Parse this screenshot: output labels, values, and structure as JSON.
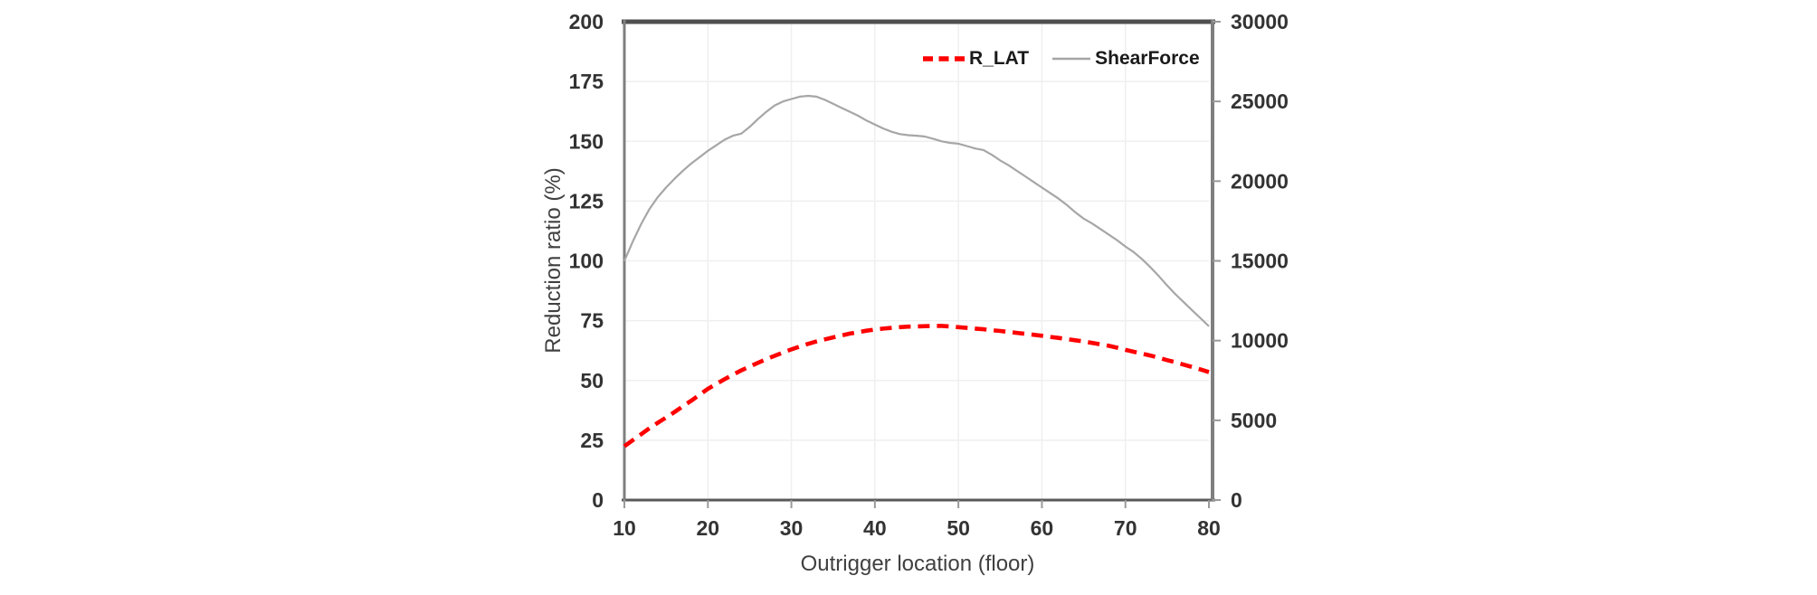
{
  "colors": {
    "rlat_red": "#FF0000",
    "shearforce_gray": "#A6A6A6",
    "plot_border_dark": "#4f4f4f",
    "axis_line": "#7f7f7f",
    "gridline": "#efefef",
    "tick_text": "#333333",
    "title_text": "#404040",
    "background": "#ffffff"
  },
  "chart_data": {
    "type": "line",
    "title": "",
    "xlabel": "Outrigger location (floor)",
    "ylabel": "Reduction ratio (%)",
    "ylabel_right": "",
    "grid": true,
    "legend_position": "top-right-inside",
    "x_axis": {
      "min": 10,
      "max": 80,
      "ticks": [
        10,
        20,
        30,
        40,
        50,
        60,
        70,
        80
      ]
    },
    "left_axis": {
      "min": 0,
      "max": 200,
      "ticks": [
        0,
        25,
        50,
        75,
        100,
        125,
        150,
        175,
        200
      ]
    },
    "right_axis": {
      "min": 0,
      "max": 30000,
      "ticks": [
        0,
        5000,
        10000,
        15000,
        20000,
        25000,
        30000
      ]
    },
    "series": [
      {
        "name": "R_LAT",
        "axis": "left",
        "color": "#FF0000",
        "style": "dashed",
        "width": 4.6,
        "points": [
          [
            10,
            22.5
          ],
          [
            11,
            25
          ],
          [
            12,
            27.5
          ],
          [
            13,
            30
          ],
          [
            14,
            32.3
          ],
          [
            15,
            34.5
          ],
          [
            16,
            36.8
          ],
          [
            17,
            39.2
          ],
          [
            18,
            41.5
          ],
          [
            19,
            44
          ],
          [
            20,
            46.5
          ],
          [
            21,
            48.5
          ],
          [
            22,
            50.5
          ],
          [
            23,
            52.4
          ],
          [
            24,
            54.2
          ],
          [
            25,
            55.8
          ],
          [
            26,
            57.4
          ],
          [
            27,
            58.9
          ],
          [
            28,
            60.3
          ],
          [
            29,
            61.7
          ],
          [
            30,
            63
          ],
          [
            31,
            64.2
          ],
          [
            32,
            65.3
          ],
          [
            33,
            66.3
          ],
          [
            34,
            67.2
          ],
          [
            35,
            68
          ],
          [
            36,
            68.8
          ],
          [
            37,
            69.6
          ],
          [
            38,
            70.2
          ],
          [
            39,
            70.8
          ],
          [
            40,
            71.3
          ],
          [
            41,
            71.7
          ],
          [
            42,
            72
          ],
          [
            43,
            72.3
          ],
          [
            44,
            72.5
          ],
          [
            45,
            72.6
          ],
          [
            46,
            72.7
          ],
          [
            47,
            72.8
          ],
          [
            48,
            72.8
          ],
          [
            49,
            72.6
          ],
          [
            50,
            72.3
          ],
          [
            51,
            72
          ],
          [
            52,
            71.7
          ],
          [
            53,
            71.4
          ],
          [
            54,
            71
          ],
          [
            55,
            70.7
          ],
          [
            56,
            70.3
          ],
          [
            57,
            69.9
          ],
          [
            58,
            69.5
          ],
          [
            59,
            69.1
          ],
          [
            60,
            68.7
          ],
          [
            61,
            68.2
          ],
          [
            62,
            67.8
          ],
          [
            63,
            67.3
          ],
          [
            64,
            66.8
          ],
          [
            65,
            66.3
          ],
          [
            66,
            65.7
          ],
          [
            67,
            65.1
          ],
          [
            68,
            64.5
          ],
          [
            69,
            63.7
          ],
          [
            70,
            62.8
          ],
          [
            71,
            62
          ],
          [
            72,
            61.2
          ],
          [
            73,
            60.4
          ],
          [
            74,
            59.5
          ],
          [
            75,
            58.5
          ],
          [
            76,
            57.6
          ],
          [
            77,
            56.6
          ],
          [
            78,
            55.6
          ],
          [
            79,
            54.6
          ],
          [
            80,
            53.5
          ]
        ]
      },
      {
        "name": "ShearForce",
        "axis": "right",
        "color": "#A6A6A6",
        "style": "solid",
        "width": 2.2,
        "points": [
          [
            10,
            15000
          ],
          [
            11,
            16200
          ],
          [
            12,
            17300
          ],
          [
            13,
            18250
          ],
          [
            14,
            19000
          ],
          [
            15,
            19600
          ],
          [
            16,
            20150
          ],
          [
            17,
            20650
          ],
          [
            18,
            21100
          ],
          [
            19,
            21500
          ],
          [
            20,
            21900
          ],
          [
            21,
            22250
          ],
          [
            22,
            22600
          ],
          [
            23,
            22850
          ],
          [
            24,
            22980
          ],
          [
            25,
            23400
          ],
          [
            26,
            23900
          ],
          [
            27,
            24350
          ],
          [
            28,
            24750
          ],
          [
            29,
            25000
          ],
          [
            30,
            25150
          ],
          [
            31,
            25300
          ],
          [
            32,
            25350
          ],
          [
            33,
            25300
          ],
          [
            34,
            25100
          ],
          [
            35,
            24850
          ],
          [
            36,
            24600
          ],
          [
            37,
            24350
          ],
          [
            38,
            24100
          ],
          [
            39,
            23800
          ],
          [
            40,
            23550
          ],
          [
            41,
            23300
          ],
          [
            42,
            23100
          ],
          [
            43,
            22950
          ],
          [
            44,
            22880
          ],
          [
            45,
            22850
          ],
          [
            46,
            22800
          ],
          [
            47,
            22650
          ],
          [
            48,
            22500
          ],
          [
            49,
            22400
          ],
          [
            50,
            22350
          ],
          [
            51,
            22200
          ],
          [
            52,
            22050
          ],
          [
            53,
            21950
          ],
          [
            54,
            21650
          ],
          [
            55,
            21300
          ],
          [
            56,
            21000
          ],
          [
            57,
            20650
          ],
          [
            58,
            20300
          ],
          [
            59,
            19950
          ],
          [
            60,
            19600
          ],
          [
            61,
            19250
          ],
          [
            62,
            18900
          ],
          [
            63,
            18500
          ],
          [
            64,
            18050
          ],
          [
            65,
            17650
          ],
          [
            66,
            17350
          ],
          [
            67,
            17000
          ],
          [
            68,
            16650
          ],
          [
            69,
            16300
          ],
          [
            70,
            15900
          ],
          [
            71,
            15550
          ],
          [
            72,
            15100
          ],
          [
            73,
            14600
          ],
          [
            74,
            14050
          ],
          [
            75,
            13450
          ],
          [
            76,
            12900
          ],
          [
            77,
            12400
          ],
          [
            78,
            11900
          ],
          [
            79,
            11400
          ],
          [
            80,
            10900
          ]
        ]
      }
    ]
  }
}
